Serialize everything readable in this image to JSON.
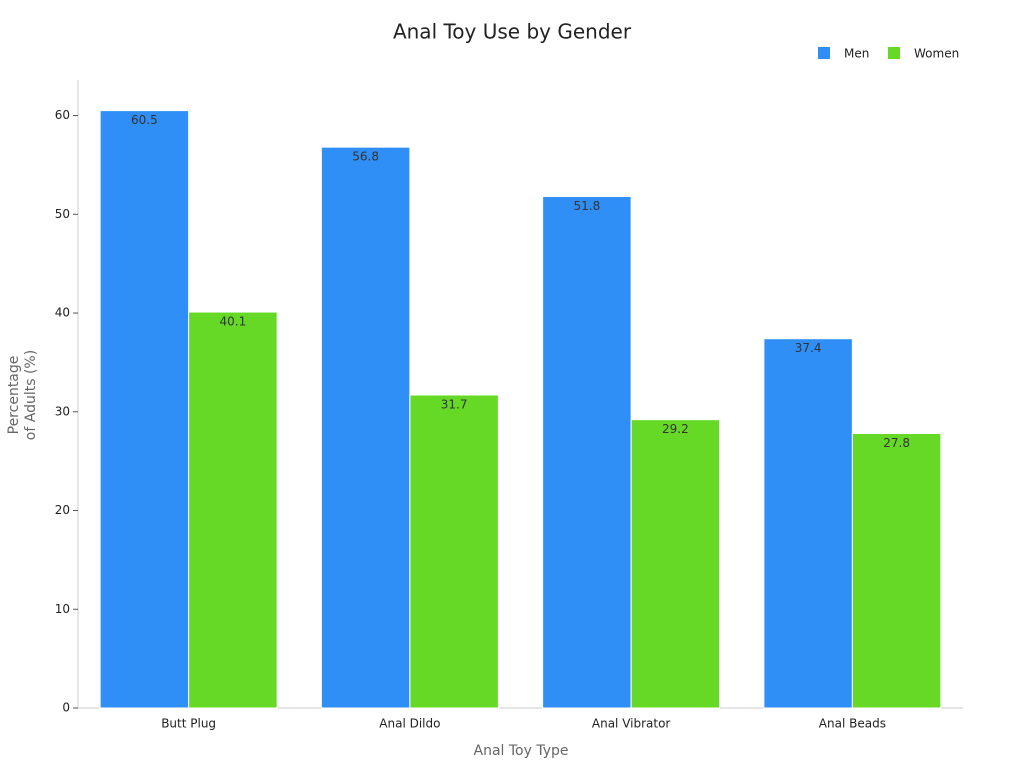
{
  "chart_data": {
    "type": "bar",
    "title": "Anal Toy Use by Gender",
    "xlabel": "Anal Toy Type",
    "ylabel": [
      "Percentage",
      "of Adults (%)"
    ],
    "categories": [
      "Butt Plug",
      "Anal Dildo",
      "Anal Vibrator",
      "Anal Beads"
    ],
    "series": [
      {
        "name": "Men",
        "color": "#2f8ff7",
        "values": [
          60.5,
          56.8,
          51.8,
          37.4
        ]
      },
      {
        "name": "Women",
        "color": "#66d927",
        "values": [
          40.1,
          31.7,
          29.2,
          27.8
        ]
      }
    ],
    "ylim": [
      0,
      63.6
    ],
    "yticks": [
      0,
      10,
      20,
      30,
      40,
      50,
      60
    ],
    "grid": false,
    "legend": "top-right"
  }
}
